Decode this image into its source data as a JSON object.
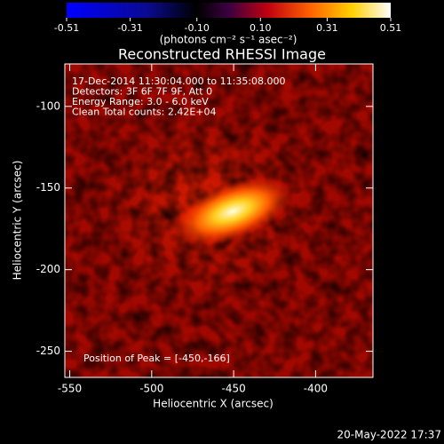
{
  "chart_data": {
    "type": "image",
    "title": "Reconstructed RHESSI Image",
    "colorbar": {
      "label": "(photons cm⁻² s⁻¹ asec⁻²)",
      "lim": [
        -0.51,
        0.51
      ],
      "ticks": [
        -0.51,
        -0.31,
        {
          "value": -0.1,
          "label": "-0.10"
        },
        {
          "value": 0.1,
          "label": "0.10"
        },
        0.31,
        0.51
      ]
    },
    "x_label": "Heliocentric X (arcsec)",
    "y_label": "Heliocentric Y (arcsec)",
    "xlim": [
      -553,
      -365
    ],
    "xticks": [
      -550,
      -500,
      -450,
      -400
    ],
    "ylim": [
      -266,
      -74
    ],
    "yticks": [
      -100,
      -150,
      -200,
      -250
    ],
    "annotations": [
      "17-Dec-2014 11:30:04.000 to 11:35:08.000",
      "Detectors: 3F 6F 7F 9F, Att 0",
      "Energy Range: 3.0 - 6.0 keV",
      "Clean     Total counts: 2.42E+04"
    ],
    "peak_label": "Position of Peak = [-450,-166]"
  },
  "timestamp": "20-May-2022 17:37"
}
